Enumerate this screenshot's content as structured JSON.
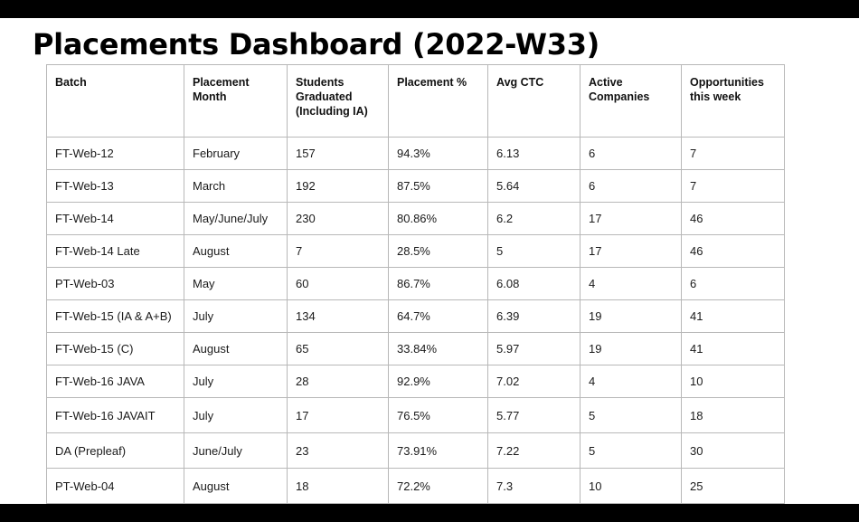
{
  "page": {
    "title": "Placements Dashboard (2022-W33)"
  },
  "table": {
    "headers": [
      "Batch",
      "Placement Month",
      "Students Graduated (Including IA)",
      "Placement %",
      "Avg CTC",
      "Active Companies",
      "Opportunities this week"
    ],
    "rows": [
      [
        "FT-Web-12",
        "February",
        "157",
        "94.3%",
        "6.13",
        "6",
        "7"
      ],
      [
        "FT-Web-13",
        "March",
        "192",
        "87.5%",
        "5.64",
        "6",
        "7"
      ],
      [
        "FT-Web-14",
        "May/June/July",
        "230",
        "80.86%",
        "6.2",
        "17",
        "46"
      ],
      [
        "FT-Web-14  Late",
        "August",
        "7",
        "28.5%",
        "5",
        "17",
        "46"
      ],
      [
        "PT-Web-03",
        "May",
        "60",
        "86.7%",
        "6.08",
        "4",
        "6"
      ],
      [
        "FT-Web-15  (IA & A+B)",
        "July",
        "134",
        "64.7%",
        "6.39",
        "19",
        "41"
      ],
      [
        "FT-Web-15  (C)",
        "August",
        "65",
        "33.84%",
        "5.97",
        "19",
        "41"
      ],
      [
        "FT-Web-16  JAVA",
        "July",
        "28",
        "92.9%",
        "7.02",
        "4",
        "10"
      ],
      [
        "FT-Web-16  JAVAIT",
        "July",
        "17",
        "76.5%",
        "5.77",
        "5",
        "18"
      ],
      [
        "DA (Prepleaf)",
        "June/July",
        "23",
        "73.91%",
        "7.22",
        "5",
        "30"
      ],
      [
        "PT-Web-04",
        "August",
        "18",
        "72.2%",
        "7.3",
        "10",
        "25"
      ]
    ]
  }
}
